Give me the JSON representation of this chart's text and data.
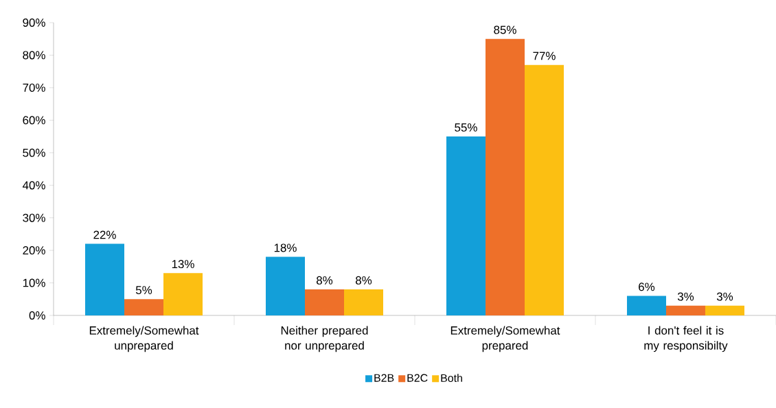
{
  "chart_data": {
    "type": "bar",
    "categories": [
      "Extremely/Somewhat unprepared",
      "Neither prepared nor unprepared",
      "Extremely/Somewhat prepared",
      "I don't feel it is my responsibilty"
    ],
    "series": [
      {
        "name": "B2B",
        "color": "#139fd9",
        "values": [
          22,
          18,
          55,
          6
        ],
        "value_labels": [
          "22%",
          "18%",
          "55%",
          "6%"
        ]
      },
      {
        "name": "B2C",
        "color": "#ee7029",
        "values": [
          5,
          8,
          85,
          3
        ],
        "value_labels": [
          "5%",
          "8%",
          "85%",
          "3%"
        ]
      },
      {
        "name": "Both",
        "color": "#fcbf12",
        "values": [
          13,
          8,
          77,
          3
        ],
        "value_labels": [
          "13%",
          "8%",
          "77%",
          "3%"
        ]
      }
    ],
    "ylim": [
      0,
      90
    ],
    "yticks": [
      {
        "value": 0,
        "label": "0%"
      },
      {
        "value": 10,
        "label": "10%"
      },
      {
        "value": 20,
        "label": "20%"
      },
      {
        "value": 30,
        "label": "30%"
      },
      {
        "value": 40,
        "label": "40%"
      },
      {
        "value": 50,
        "label": "50%"
      },
      {
        "value": 60,
        "label": "60%"
      },
      {
        "value": 70,
        "label": "70%"
      },
      {
        "value": 80,
        "label": "80%"
      },
      {
        "value": 90,
        "label": "90%"
      }
    ],
    "grid": false,
    "legend": "bottom"
  }
}
